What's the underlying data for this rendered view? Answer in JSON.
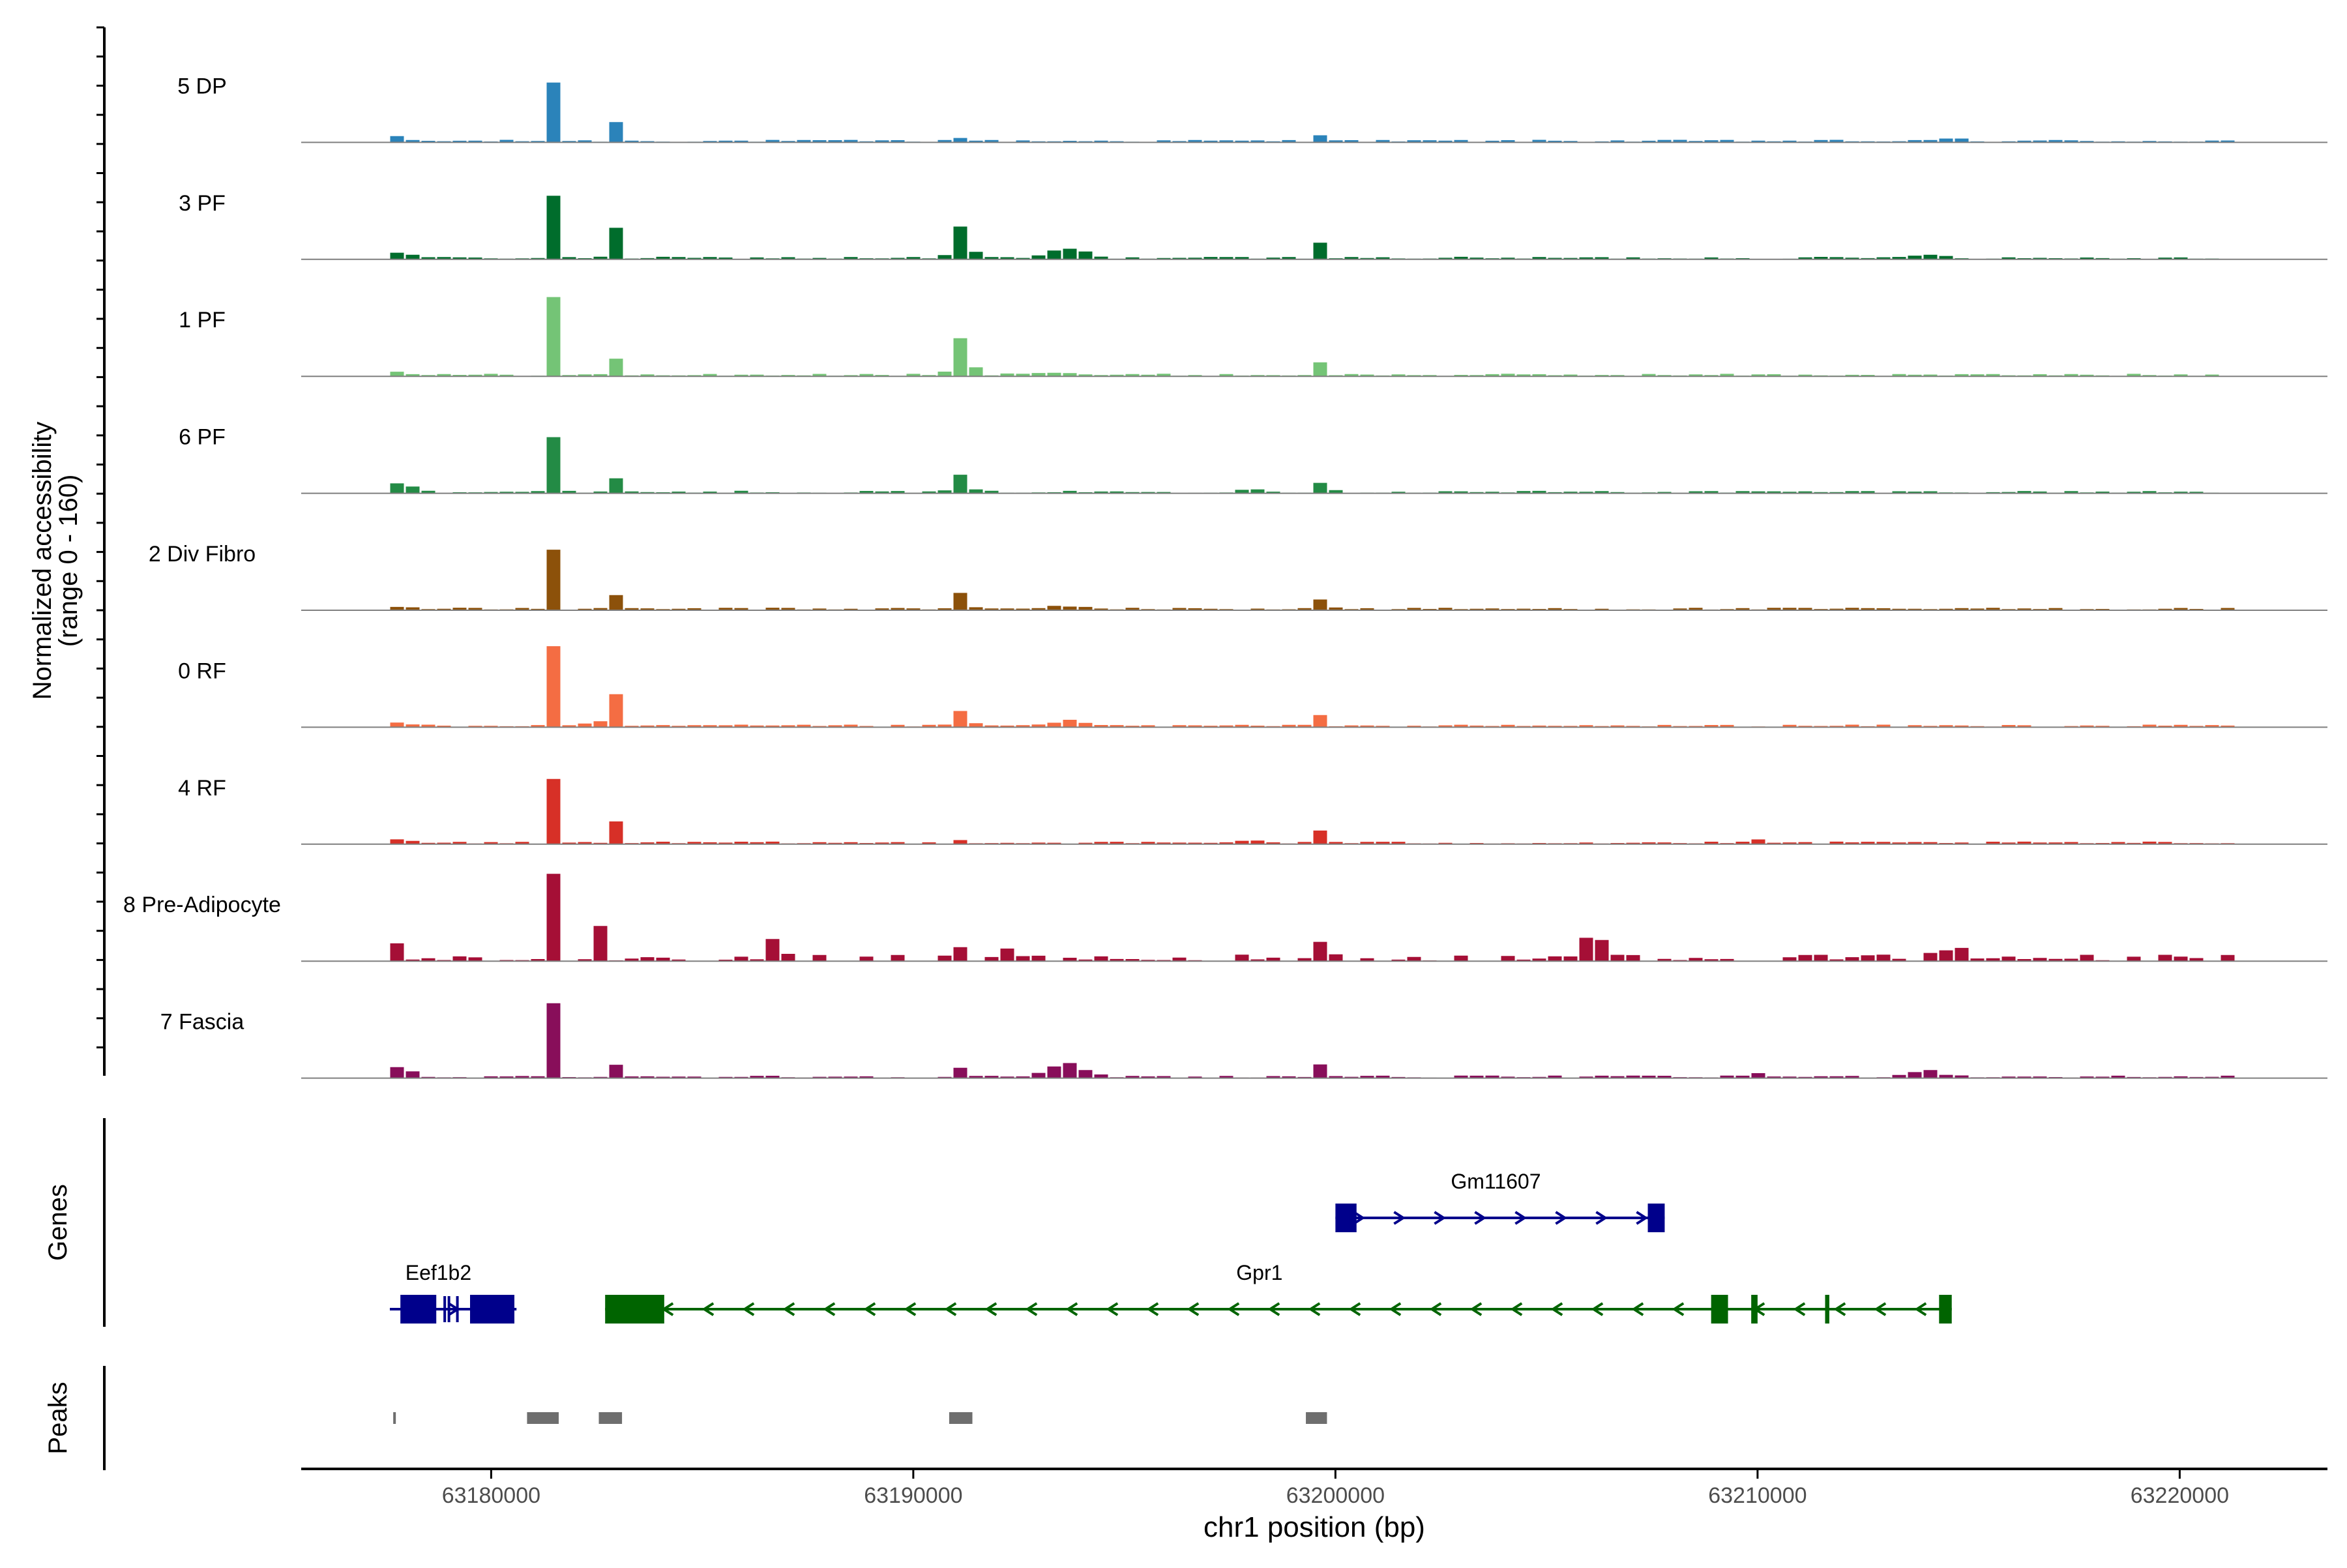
{
  "chart_data": {
    "type": "area",
    "title": "",
    "xlabel": "chr1 position (bp)",
    "ylabel_line1": "Normalized accessibility",
    "ylabel_line2": "(range 0 - 160)",
    "yrange": [
      0,
      160
    ],
    "xlim": [
      63175500,
      63223500
    ],
    "x_ticks": [
      {
        "value": 63180000,
        "label": "63180000"
      },
      {
        "value": 63190000,
        "label": "63190000"
      },
      {
        "value": 63200000,
        "label": "63200000"
      },
      {
        "value": 63210000,
        "label": "63210000"
      },
      {
        "value": 63220000,
        "label": "63220000"
      }
    ],
    "tracks": [
      {
        "name": "5 DP",
        "color": "#2b83ba",
        "peaks": [
          [
            63177700,
            0.07,
            160
          ],
          [
            63181300,
            0.95,
            90
          ],
          [
            63182800,
            0.3,
            100
          ],
          [
            63191000,
            0.05,
            200
          ],
          [
            63199600,
            0.18,
            110
          ],
          [
            63214500,
            0.05,
            200
          ]
        ]
      },
      {
        "name": "3 PF",
        "color": "#006d2c",
        "peaks": [
          [
            63177700,
            0.1,
            200
          ],
          [
            63181300,
            1.0,
            100
          ],
          [
            63182800,
            0.48,
            110
          ],
          [
            63191000,
            0.5,
            180
          ],
          [
            63193500,
            0.15,
            400
          ],
          [
            63199600,
            0.58,
            90
          ],
          [
            63213800,
            0.06,
            400
          ]
        ]
      },
      {
        "name": "1 PF",
        "color": "#74c476",
        "peaks": [
          [
            63177700,
            0.05,
            200
          ],
          [
            63181300,
            1.25,
            90
          ],
          [
            63182800,
            0.25,
            100
          ],
          [
            63191000,
            0.58,
            180
          ],
          [
            63193000,
            0.05,
            500
          ],
          [
            63199600,
            0.42,
            90
          ]
        ]
      },
      {
        "name": "6 PF",
        "color": "#238b45",
        "peaks": [
          [
            63177700,
            0.15,
            300
          ],
          [
            63181300,
            0.88,
            90
          ],
          [
            63182800,
            0.23,
            120
          ],
          [
            63191000,
            0.28,
            150
          ],
          [
            63197800,
            0.07,
            200
          ],
          [
            63199600,
            0.29,
            100
          ]
        ]
      },
      {
        "name": "2 Div Fibro",
        "color": "#8c510a",
        "peaks": [
          [
            63177700,
            0.04,
            200
          ],
          [
            63181300,
            0.95,
            90
          ],
          [
            63182800,
            0.2,
            100
          ],
          [
            63191000,
            0.25,
            150
          ],
          [
            63193500,
            0.05,
            400
          ],
          [
            63199600,
            0.3,
            100
          ]
        ]
      },
      {
        "name": "0 RF",
        "color": "#f46d43",
        "peaks": [
          [
            63177700,
            0.06,
            200
          ],
          [
            63181300,
            1.28,
            90
          ],
          [
            63182300,
            0.12,
            120
          ],
          [
            63182800,
            0.48,
            110
          ],
          [
            63191000,
            0.25,
            150
          ],
          [
            63193500,
            0.08,
            400
          ],
          [
            63199600,
            0.42,
            90
          ]
        ]
      },
      {
        "name": "4 RF",
        "color": "#d73027",
        "peaks": [
          [
            63177700,
            0.06,
            200
          ],
          [
            63181300,
            1.02,
            90
          ],
          [
            63182800,
            0.35,
            100
          ],
          [
            63191000,
            0.05,
            150
          ],
          [
            63197800,
            0.06,
            200
          ],
          [
            63199600,
            0.36,
            100
          ],
          [
            63210000,
            0.1,
            100
          ]
        ]
      },
      {
        "name": "8 Pre-Adipocyte",
        "color": "#a50f36",
        "peaks": [
          [
            63177700,
            0.35,
            120
          ],
          [
            63181300,
            1.4,
            90
          ],
          [
            63182500,
            0.58,
            100
          ],
          [
            63186500,
            0.25,
            150
          ],
          [
            63190800,
            0.22,
            150
          ],
          [
            63192200,
            0.3,
            120
          ],
          [
            63199600,
            0.36,
            110
          ],
          [
            63206000,
            0.36,
            300
          ],
          [
            63214500,
            0.2,
            300
          ]
        ]
      },
      {
        "name": "7 Fascia",
        "color": "#880e5a",
        "peaks": [
          [
            63177700,
            0.15,
            250
          ],
          [
            63181300,
            1.18,
            90
          ],
          [
            63182800,
            0.2,
            150
          ],
          [
            63191000,
            0.15,
            150
          ],
          [
            63193500,
            0.2,
            400
          ],
          [
            63199600,
            0.38,
            100
          ],
          [
            63210000,
            0.15,
            100
          ],
          [
            63213800,
            0.1,
            400
          ]
        ]
      }
    ],
    "genes_label": "Genes",
    "genes": [
      {
        "name": "Gm11607",
        "row": 0,
        "strand": "+",
        "color": "#00008b",
        "start": 63200000,
        "end": 63207800,
        "exons": [
          [
            63200000,
            63200500
          ],
          [
            63207400,
            63207800
          ]
        ],
        "introns": [
          63200300
        ]
      },
      {
        "name": "Eef1b2",
        "row": 1,
        "strand": "+",
        "color": "#00008b",
        "start": 63177600,
        "end": 63180600,
        "exons": [
          [
            63177850,
            63178700
          ],
          [
            63179500,
            63180550
          ]
        ],
        "introns": [
          63178900,
          63179000,
          63179200
        ]
      },
      {
        "name": "Gpr1",
        "row": 1,
        "strand": "-",
        "color": "#006400",
        "start": 63182700,
        "end": 63214600,
        "exons": [
          [
            63182700,
            63184100
          ],
          [
            63208900,
            63209300
          ],
          [
            63209850,
            63210000
          ],
          [
            63211600,
            63211700
          ],
          [
            63214300,
            63214600
          ]
        ],
        "introns": []
      }
    ],
    "peaks_label": "Peaks",
    "peak_regions": [
      [
        63177680,
        63177720
      ],
      [
        63180850,
        63181600
      ],
      [
        63182550,
        63183100
      ],
      [
        63190850,
        63191400
      ],
      [
        63199300,
        63199800
      ]
    ]
  }
}
